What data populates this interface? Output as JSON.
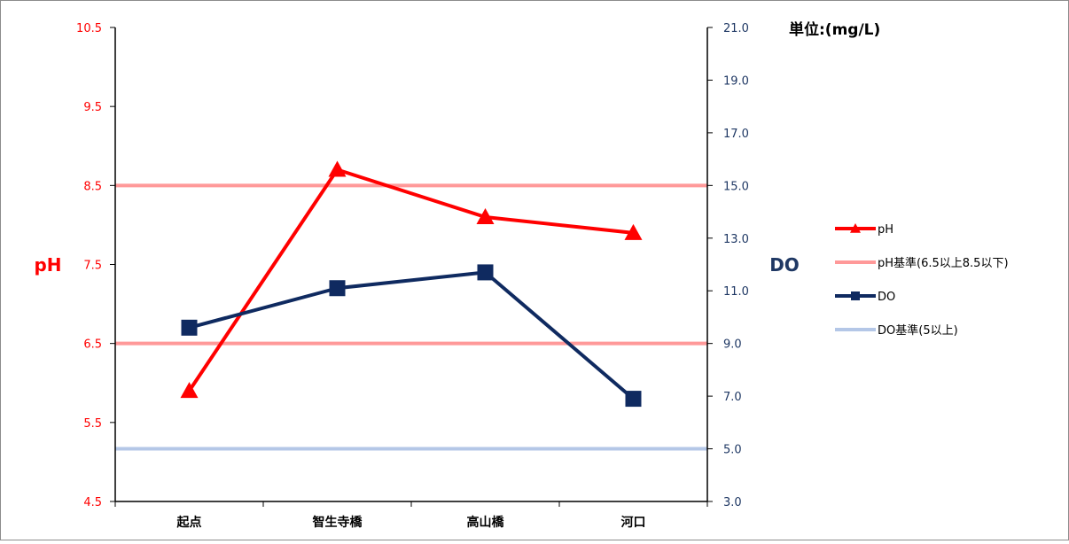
{
  "chart_data": {
    "type": "line",
    "categories": [
      "起点",
      "智生寺橋",
      "高山橋",
      "河口"
    ],
    "y_left": {
      "label": "pH",
      "ylim": [
        4.5,
        10.5
      ],
      "ticks": [
        "4.5",
        "5.5",
        "6.5",
        "7.5",
        "8.5",
        "9.5",
        "10.5"
      ],
      "color": "#ff0000"
    },
    "y_right": {
      "label": "DO",
      "ylim": [
        3.0,
        21.0
      ],
      "ticks": [
        "3.0",
        "5.0",
        "7.0",
        "9.0",
        "11.0",
        "13.0",
        "15.0",
        "17.0",
        "19.0",
        "21.0"
      ],
      "color": "#1f3864"
    },
    "unit_label": "単位:(mg/L)",
    "series": [
      {
        "name": "pH",
        "axis": "left",
        "marker": "triangle",
        "color": "#ff0000",
        "values": [
          5.9,
          8.7,
          8.1,
          7.9
        ]
      },
      {
        "name": "pH基準(6.5以上8.5以下)",
        "axis": "left",
        "marker": "none",
        "color": "#ff9999",
        "lines": [
          6.5,
          8.5
        ]
      },
      {
        "name": "DO",
        "axis": "right",
        "marker": "square",
        "color": "#0f2a60",
        "values": [
          9.6,
          11.1,
          11.7,
          6.9
        ]
      },
      {
        "name": "DO基準(5以上)",
        "axis": "right",
        "marker": "none",
        "color": "#b4c7e7",
        "lines": [
          5.0
        ]
      }
    ],
    "legend_position": "right",
    "grid": false
  }
}
